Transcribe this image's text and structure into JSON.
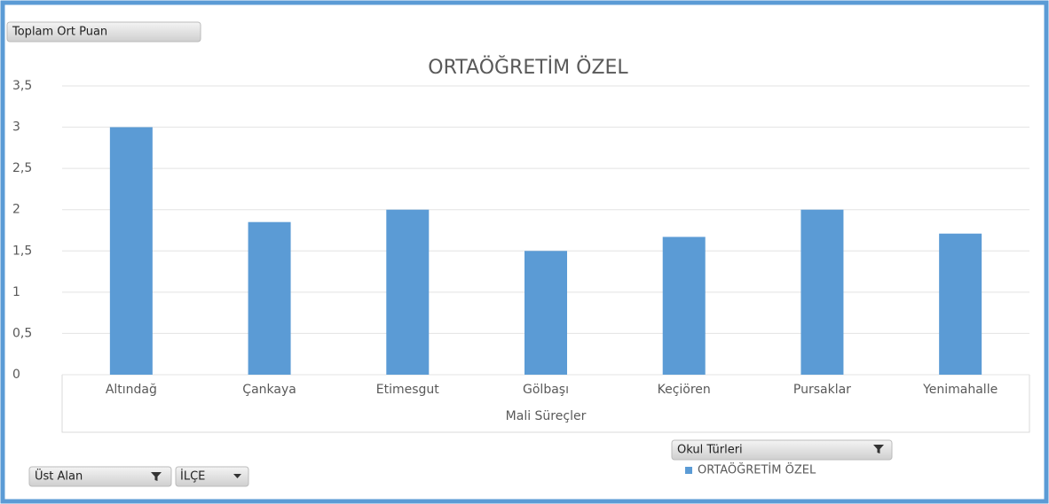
{
  "chart_data": {
    "type": "bar",
    "title": "ORTAÖĞRETİM ÖZEL",
    "categories": [
      "Altındağ",
      "Çankaya",
      "Etimesgut",
      "Gölbaşı",
      "Keçiören",
      "Pursaklar",
      "Yenimahalle"
    ],
    "series": [
      {
        "name": "ORTAÖĞRETİM ÖZEL",
        "color": "#5b9bd5",
        "values": [
          3,
          1.85,
          2,
          1.5,
          1.67,
          2,
          1.71
        ]
      }
    ],
    "x_label": "Mali Süreçler",
    "ylim": [
      0,
      3.5
    ],
    "yticks": [
      0,
      {
        "value": 0.5,
        "label": "0,5"
      },
      1,
      {
        "value": 1.5,
        "label": "1,5"
      },
      2,
      {
        "value": 2.5,
        "label": "2,5"
      },
      3,
      {
        "value": 3.5,
        "label": "3,5"
      }
    ],
    "grid": true
  },
  "field_buttons": {
    "value": "Toplam Ort Puan",
    "filters": [
      "Üst Alan",
      "İLÇE"
    ],
    "legend": "Okul Türleri"
  }
}
